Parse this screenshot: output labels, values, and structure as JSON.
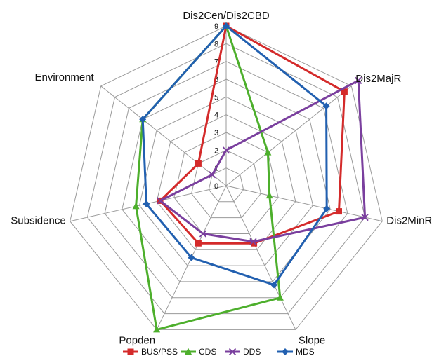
{
  "chart_data": {
    "type": "radar",
    "axes": [
      "Dis2Cen/Dis2CBD",
      "Dis2MajR",
      "Dis2MinR",
      "Slope",
      "Popden",
      "Subsidence",
      "Environment"
    ],
    "ticks": [
      "0",
      "1",
      "2",
      "3",
      "4",
      "5",
      "6",
      "7",
      "8",
      "9"
    ],
    "rmax": 9,
    "grid": true,
    "legend_position": "bottom",
    "series": [
      {
        "name": "BUS/PSS",
        "color": "#d42a2a",
        "marker": "square",
        "values": [
          9,
          8.5,
          6.5,
          3.6,
          3.6,
          3.8,
          2
        ]
      },
      {
        "name": "CDS",
        "color": "#4daf2c",
        "marker": "triangle",
        "values": [
          9,
          3,
          2.5,
          7,
          9,
          5.2,
          6
        ]
      },
      {
        "name": "DDS",
        "color": "#7a3f9e",
        "marker": "x",
        "values": [
          2,
          9.5,
          8,
          3.5,
          3,
          3.8,
          1
        ]
      },
      {
        "name": "MDS",
        "color": "#2260b0",
        "marker": "diamond",
        "values": [
          9,
          7.2,
          5.8,
          6.2,
          4.5,
          4.6,
          6
        ]
      }
    ]
  }
}
